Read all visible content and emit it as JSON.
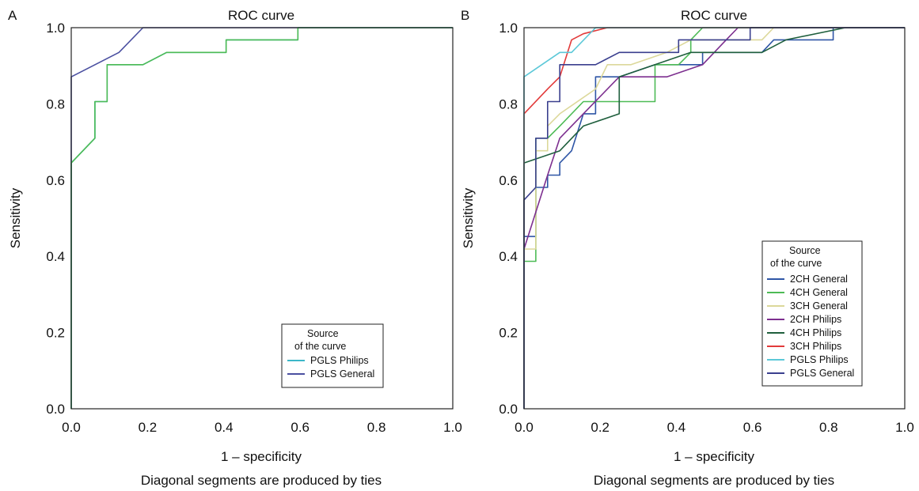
{
  "chart_data": [
    {
      "panel_label": "A",
      "type": "line",
      "title": "ROC curve",
      "xlabel": "1 – specificity",
      "ylabel": "Sensitivity",
      "footnote": "Diagonal segments are produced by ties",
      "xlim": [
        0,
        1
      ],
      "ylim": [
        0,
        1
      ],
      "xticks": [
        "0.0",
        "0.2",
        "0.4",
        "0.6",
        "0.8",
        "1.0"
      ],
      "yticks": [
        "0.0",
        "0.2",
        "0.4",
        "0.6",
        "0.8",
        "1.0"
      ],
      "grid": false,
      "legend": {
        "title_line1": "Source",
        "title_line2": "of the curve",
        "position": "bottom-right"
      },
      "series": [
        {
          "name": "PGLS Philips",
          "color": "#3cb7c8",
          "points": [
            [
              0,
              0
            ],
            [
              0,
              0.645
            ],
            [
              0.062,
              0.71
            ],
            [
              0.062,
              0.806
            ],
            [
              0.094,
              0.806
            ],
            [
              0.094,
              0.903
            ],
            [
              0.188,
              0.903
            ],
            [
              0.25,
              0.935
            ],
            [
              0.406,
              0.935
            ],
            [
              0.406,
              0.968
            ],
            [
              0.594,
              0.968
            ],
            [
              0.594,
              1.0
            ],
            [
              1,
              1
            ]
          ]
        },
        {
          "name": "PGLS General",
          "color": "#4a4fa0",
          "points": [
            [
              0,
              0
            ],
            [
              0,
              0.871
            ],
            [
              0.125,
              0.935
            ],
            [
              0.188,
              1.0
            ],
            [
              1,
              1
            ]
          ]
        }
      ],
      "overlay_color": "#4dbb55"
    },
    {
      "panel_label": "B",
      "type": "line",
      "title": "ROC curve",
      "xlabel": "1 – specificity",
      "ylabel": "Sensitivity",
      "footnote": "Diagonal segments are produced by ties",
      "xlim": [
        0,
        1
      ],
      "ylim": [
        0,
        1
      ],
      "xticks": [
        "0.0",
        "0.2",
        "0.4",
        "0.6",
        "0.8",
        "1.0"
      ],
      "yticks": [
        "0.0",
        "0.2",
        "0.4",
        "0.6",
        "0.8",
        "1.0"
      ],
      "grid": false,
      "legend": {
        "title_line1": "Source",
        "title_line2": "of the curve",
        "position": "center-right"
      },
      "series": [
        {
          "name": "2CH General",
          "color": "#2f56a6",
          "points": [
            [
              0,
              0
            ],
            [
              0,
              0.452
            ],
            [
              0.031,
              0.452
            ],
            [
              0.031,
              0.581
            ],
            [
              0.062,
              0.581
            ],
            [
              0.062,
              0.613
            ],
            [
              0.094,
              0.613
            ],
            [
              0.094,
              0.645
            ],
            [
              0.125,
              0.677
            ],
            [
              0.156,
              0.774
            ],
            [
              0.188,
              0.774
            ],
            [
              0.188,
              0.871
            ],
            [
              0.25,
              0.871
            ],
            [
              0.344,
              0.903
            ],
            [
              0.469,
              0.903
            ],
            [
              0.469,
              0.935
            ],
            [
              0.625,
              0.935
            ],
            [
              0.656,
              0.968
            ],
            [
              0.812,
              0.968
            ],
            [
              0.812,
              1.0
            ],
            [
              1,
              1
            ]
          ]
        },
        {
          "name": "4CH General",
          "color": "#4dbb55",
          "points": [
            [
              0,
              0
            ],
            [
              0,
              0.387
            ],
            [
              0.031,
              0.387
            ],
            [
              0.031,
              0.71
            ],
            [
              0.062,
              0.71
            ],
            [
              0.094,
              0.742
            ],
            [
              0.156,
              0.806
            ],
            [
              0.25,
              0.806
            ],
            [
              0.344,
              0.806
            ],
            [
              0.344,
              0.903
            ],
            [
              0.406,
              0.903
            ],
            [
              0.438,
              0.935
            ],
            [
              0.438,
              0.968
            ],
            [
              0.469,
              1.0
            ],
            [
              1,
              1
            ]
          ]
        },
        {
          "name": "3CH General",
          "color": "#dcd89a",
          "points": [
            [
              0,
              0
            ],
            [
              0,
              0.419
            ],
            [
              0.031,
              0.419
            ],
            [
              0.031,
              0.677
            ],
            [
              0.062,
              0.677
            ],
            [
              0.062,
              0.742
            ],
            [
              0.094,
              0.774
            ],
            [
              0.188,
              0.839
            ],
            [
              0.219,
              0.903
            ],
            [
              0.281,
              0.903
            ],
            [
              0.375,
              0.935
            ],
            [
              0.438,
              0.968
            ],
            [
              0.625,
              0.968
            ],
            [
              0.656,
              1.0
            ],
            [
              1,
              1
            ]
          ]
        },
        {
          "name": "2CH Philips",
          "color": "#7d2f8f",
          "points": [
            [
              0,
              0
            ],
            [
              0,
              0.419
            ],
            [
              0.031,
              0.516
            ],
            [
              0.062,
              0.613
            ],
            [
              0.094,
              0.71
            ],
            [
              0.156,
              0.774
            ],
            [
              0.25,
              0.871
            ],
            [
              0.375,
              0.871
            ],
            [
              0.469,
              0.903
            ],
            [
              0.531,
              0.968
            ],
            [
              0.562,
              1.0
            ],
            [
              1,
              1
            ]
          ]
        },
        {
          "name": "4CH Philips",
          "color": "#1f5f3d",
          "points": [
            [
              0,
              0
            ],
            [
              0,
              0.645
            ],
            [
              0.094,
              0.677
            ],
            [
              0.156,
              0.742
            ],
            [
              0.25,
              0.774
            ],
            [
              0.25,
              0.871
            ],
            [
              0.344,
              0.903
            ],
            [
              0.438,
              0.935
            ],
            [
              0.562,
              0.935
            ],
            [
              0.625,
              0.935
            ],
            [
              0.688,
              0.968
            ],
            [
              0.844,
              1.0
            ],
            [
              1,
              1
            ]
          ]
        },
        {
          "name": "3CH Philips",
          "color": "#e23a3a",
          "points": [
            [
              0,
              0
            ],
            [
              0,
              0.774
            ],
            [
              0.062,
              0.839
            ],
            [
              0.094,
              0.871
            ],
            [
              0.125,
              0.968
            ],
            [
              0.156,
              0.984
            ],
            [
              0.219,
              1.0
            ],
            [
              1,
              1
            ]
          ]
        },
        {
          "name": "PGLS Philips",
          "color": "#5cc8d8",
          "points": [
            [
              0,
              0
            ],
            [
              0,
              0.871
            ],
            [
              0.094,
              0.935
            ],
            [
              0.125,
              0.935
            ],
            [
              0.188,
              1.0
            ],
            [
              1,
              1
            ]
          ]
        },
        {
          "name": "PGLS General",
          "color": "#3a3f8e",
          "points": [
            [
              0,
              0
            ],
            [
              0,
              0.548
            ],
            [
              0.031,
              0.581
            ],
            [
              0.031,
              0.71
            ],
            [
              0.062,
              0.71
            ],
            [
              0.062,
              0.806
            ],
            [
              0.094,
              0.806
            ],
            [
              0.094,
              0.903
            ],
            [
              0.188,
              0.903
            ],
            [
              0.25,
              0.935
            ],
            [
              0.406,
              0.935
            ],
            [
              0.406,
              0.968
            ],
            [
              0.594,
              0.968
            ],
            [
              0.594,
              1.0
            ],
            [
              1,
              1
            ]
          ]
        }
      ]
    }
  ]
}
